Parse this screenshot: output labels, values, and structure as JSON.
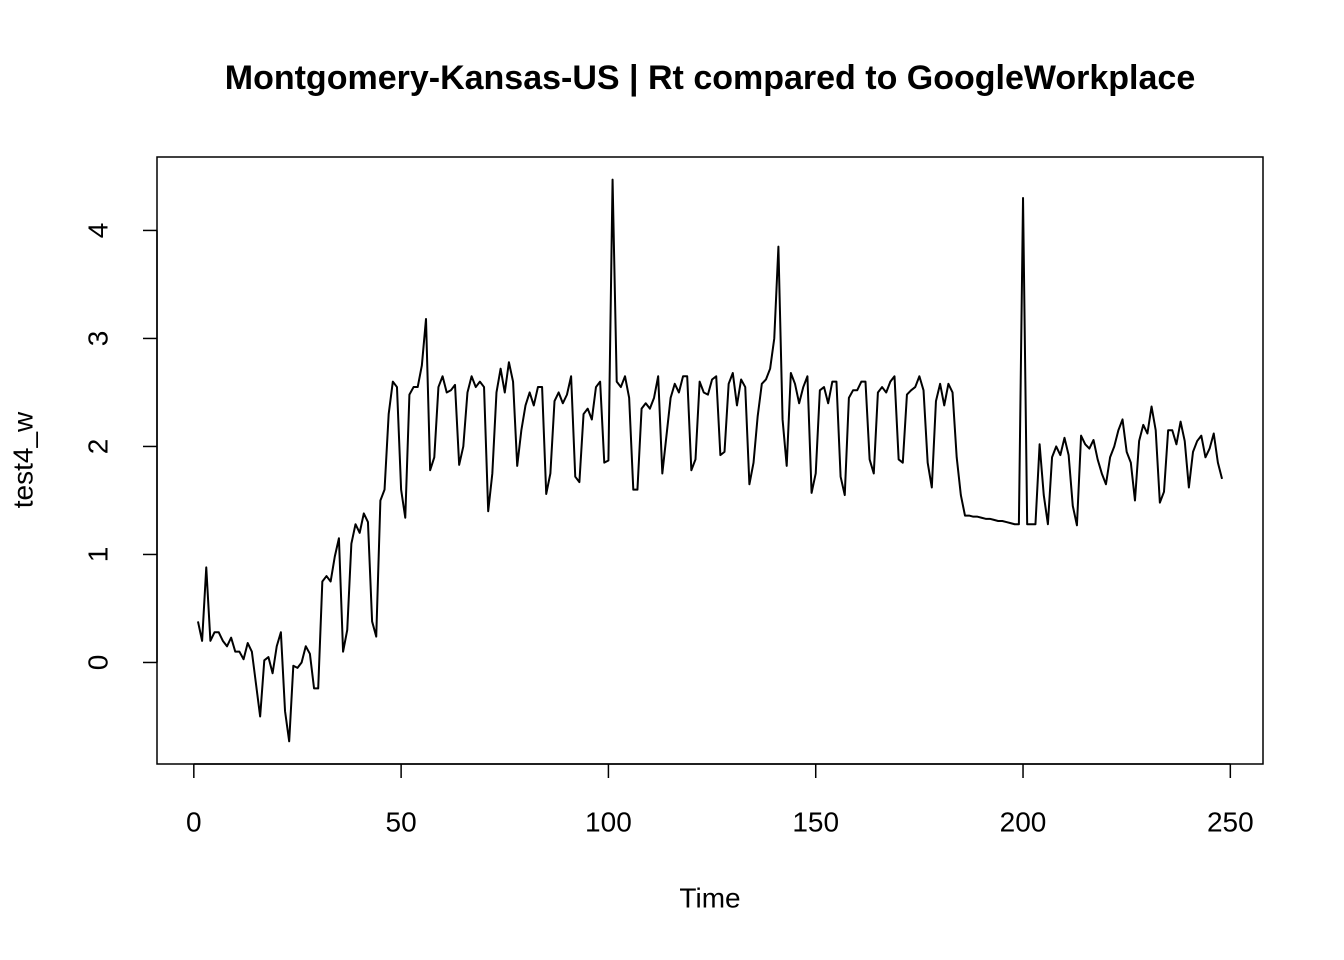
{
  "chart_data": {
    "type": "line",
    "title": "Montgomery-Kansas-US | Rt compared to GoogleWorkplace",
    "xlabel": "Time",
    "ylabel": "test4_w",
    "xlim": [
      -8.88,
      257.88
    ],
    "ylim": [
      -0.94,
      4.68
    ],
    "xticks": [
      0,
      50,
      100,
      150,
      200,
      250
    ],
    "yticks": [
      0,
      1,
      2,
      3,
      4
    ],
    "color": "#000000",
    "x": [
      1,
      2,
      3,
      4,
      5,
      6,
      7,
      8,
      9,
      10,
      11,
      12,
      13,
      14,
      15,
      16,
      17,
      18,
      19,
      20,
      21,
      22,
      23,
      24,
      25,
      26,
      27,
      28,
      29,
      30,
      31,
      32,
      33,
      34,
      35,
      36,
      37,
      38,
      39,
      40,
      41,
      42,
      43,
      44,
      45,
      46,
      47,
      48,
      49,
      50,
      51,
      52,
      53,
      54,
      55,
      56,
      57,
      58,
      59,
      60,
      61,
      62,
      63,
      64,
      65,
      66,
      67,
      68,
      69,
      70,
      71,
      72,
      73,
      74,
      75,
      76,
      77,
      78,
      79,
      80,
      81,
      82,
      83,
      84,
      85,
      86,
      87,
      88,
      89,
      90,
      91,
      92,
      93,
      94,
      95,
      96,
      97,
      98,
      99,
      100,
      101,
      102,
      103,
      104,
      105,
      106,
      107,
      108,
      109,
      110,
      111,
      112,
      113,
      114,
      115,
      116,
      117,
      118,
      119,
      120,
      121,
      122,
      123,
      124,
      125,
      126,
      127,
      128,
      129,
      130,
      131,
      132,
      133,
      134,
      135,
      136,
      137,
      138,
      139,
      140,
      141,
      142,
      143,
      144,
      145,
      146,
      147,
      148,
      149,
      150,
      151,
      152,
      153,
      154,
      155,
      156,
      157,
      158,
      159,
      160,
      161,
      162,
      163,
      164,
      165,
      166,
      167,
      168,
      169,
      170,
      171,
      172,
      173,
      174,
      175,
      176,
      177,
      178,
      179,
      180,
      181,
      182,
      183,
      184,
      185,
      186,
      187,
      188,
      189,
      190,
      191,
      192,
      193,
      194,
      195,
      196,
      197,
      198,
      199,
      200,
      201,
      202,
      203,
      204,
      205,
      206,
      207,
      208,
      209,
      210,
      211,
      212,
      213,
      214,
      215,
      216,
      217,
      218,
      219,
      220,
      221,
      222,
      223,
      224,
      225,
      226,
      227,
      228,
      229,
      230,
      231,
      232,
      233,
      234,
      235,
      236,
      237,
      238,
      239,
      240,
      241,
      242,
      243,
      244,
      245,
      246,
      247,
      248
    ],
    "values": [
      0.38,
      0.2,
      0.88,
      0.2,
      0.28,
      0.28,
      0.2,
      0.15,
      0.23,
      0.1,
      0.1,
      0.03,
      0.18,
      0.1,
      -0.2,
      -0.5,
      0.02,
      0.05,
      -0.1,
      0.15,
      0.28,
      -0.45,
      -0.73,
      -0.03,
      -0.05,
      0.0,
      0.15,
      0.08,
      -0.24,
      -0.24,
      0.75,
      0.8,
      0.75,
      0.98,
      1.15,
      0.1,
      0.3,
      1.1,
      1.28,
      1.2,
      1.38,
      1.3,
      0.38,
      0.24,
      1.5,
      1.6,
      2.3,
      2.6,
      2.55,
      1.6,
      1.34,
      2.48,
      2.55,
      2.55,
      2.75,
      3.18,
      1.78,
      1.9,
      2.55,
      2.65,
      2.5,
      2.52,
      2.57,
      1.83,
      2.0,
      2.5,
      2.65,
      2.55,
      2.6,
      2.55,
      1.4,
      1.75,
      2.5,
      2.72,
      2.5,
      2.78,
      2.6,
      1.82,
      2.15,
      2.38,
      2.5,
      2.38,
      2.55,
      2.55,
      1.56,
      1.75,
      2.42,
      2.5,
      2.4,
      2.48,
      2.65,
      1.72,
      1.67,
      2.3,
      2.35,
      2.25,
      2.55,
      2.6,
      1.85,
      1.87,
      4.47,
      2.6,
      2.55,
      2.65,
      2.45,
      1.6,
      1.6,
      2.35,
      2.4,
      2.35,
      2.45,
      2.65,
      1.75,
      2.1,
      2.45,
      2.58,
      2.5,
      2.65,
      2.65,
      1.78,
      1.88,
      2.6,
      2.5,
      2.48,
      2.62,
      2.65,
      1.92,
      1.95,
      2.58,
      2.68,
      2.38,
      2.62,
      2.55,
      1.65,
      1.85,
      2.28,
      2.58,
      2.62,
      2.72,
      3.0,
      3.85,
      2.25,
      1.82,
      2.68,
      2.58,
      2.4,
      2.55,
      2.65,
      1.57,
      1.75,
      2.52,
      2.55,
      2.4,
      2.6,
      2.6,
      1.72,
      1.55,
      2.45,
      2.52,
      2.52,
      2.6,
      2.6,
      1.88,
      1.75,
      2.5,
      2.55,
      2.5,
      2.6,
      2.65,
      1.88,
      1.85,
      2.48,
      2.52,
      2.55,
      2.65,
      2.52,
      1.85,
      1.62,
      2.42,
      2.58,
      2.38,
      2.58,
      2.5,
      1.9,
      1.55,
      1.36,
      1.36,
      1.35,
      1.35,
      1.34,
      1.33,
      1.33,
      1.32,
      1.31,
      1.31,
      1.3,
      1.29,
      1.28,
      1.28,
      4.3,
      1.28,
      1.28,
      1.28,
      2.02,
      1.55,
      1.28,
      1.9,
      2.0,
      1.92,
      2.08,
      1.92,
      1.45,
      1.27,
      2.1,
      2.02,
      1.98,
      2.06,
      1.88,
      1.75,
      1.65,
      1.9,
      2.0,
      2.15,
      2.25,
      1.95,
      1.85,
      1.5,
      2.05,
      2.2,
      2.12,
      2.37,
      2.15,
      1.48,
      1.58,
      2.15,
      2.15,
      2.02,
      2.23,
      2.05,
      1.62,
      1.95,
      2.05,
      2.1,
      1.9,
      1.98,
      2.12,
      1.85,
      1.7
    ]
  }
}
